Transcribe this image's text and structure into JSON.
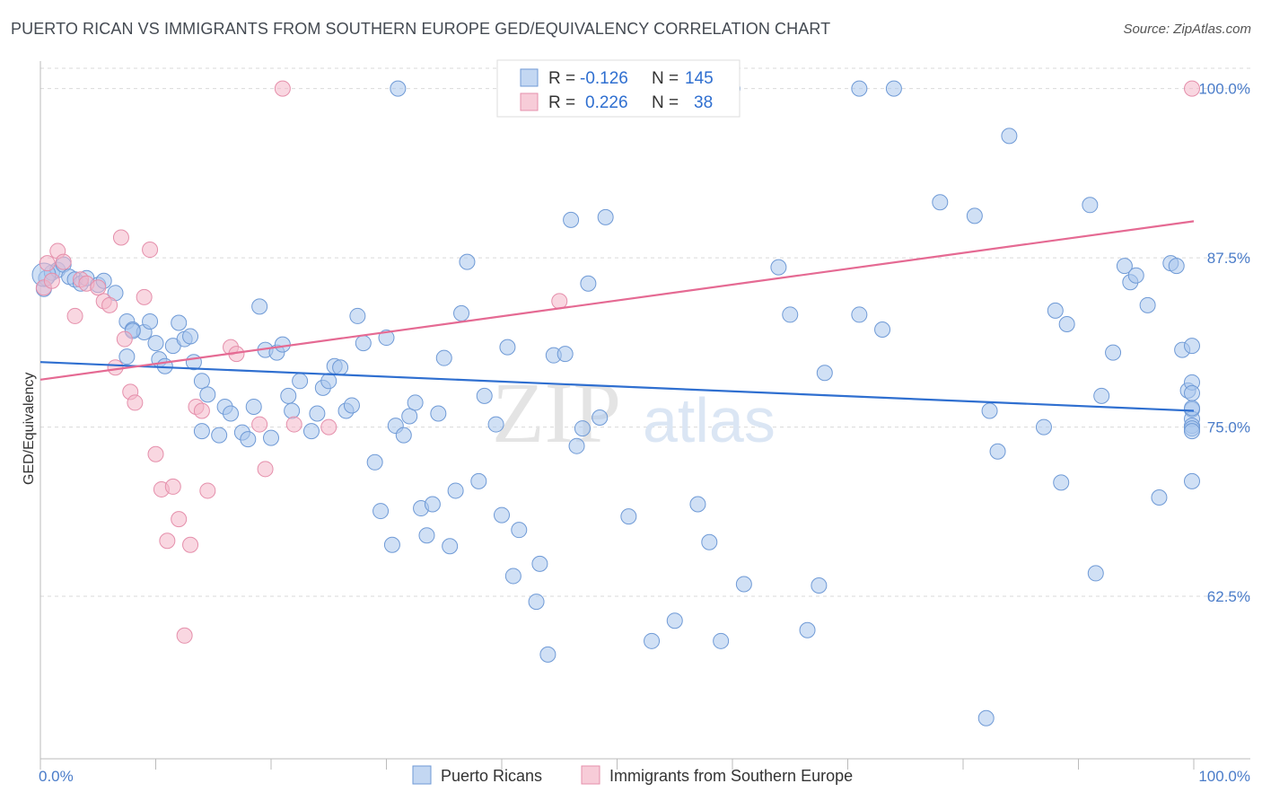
{
  "title": "PUERTO RICAN VS IMMIGRANTS FROM SOUTHERN EUROPE GED/EQUIVALENCY CORRELATION CHART",
  "source": "Source: ZipAtlas.com",
  "watermark": {
    "zip": "ZIP",
    "atlas": "atlas"
  },
  "colors": {
    "blue": "#a9c6ec",
    "blue_line": "#2f6fd0",
    "pink": "#f4b6c8",
    "pink_line": "#e56a93",
    "axis_text": "#4a7cc9"
  },
  "legend": {
    "r_label": "R =",
    "n_label": "N =",
    "rows": [
      {
        "r": "-0.126",
        "n": "145"
      },
      {
        "r": "0.226",
        "n": "38"
      }
    ]
  },
  "bottom_legend": [
    "Puerto Ricans",
    "Immigrants from Southern Europe"
  ],
  "chart_data": {
    "type": "scatter",
    "title": "PUERTO RICAN VS IMMIGRANTS FROM SOUTHERN EUROPE GED/EQUIVALENCY CORRELATION CHART",
    "xlabel": "",
    "ylabel": "GED/Equivalency",
    "xlim": [
      0,
      100
    ],
    "ylim": [
      50.5,
      101.5
    ],
    "x_tick_labels": [
      "0.0%",
      "100.0%"
    ],
    "y_ticks": [
      62.5,
      75.0,
      87.5,
      100.0
    ],
    "y_tick_labels": [
      "62.5%",
      "75.0%",
      "87.5%",
      "100.0%"
    ],
    "grid": true,
    "series": [
      {
        "name": "Puerto Ricans",
        "trend": [
          [
            0,
            79.8
          ],
          [
            100,
            76.2
          ]
        ],
        "points": [
          [
            0.3,
            85.2
          ],
          [
            0.5,
            86
          ],
          [
            1,
            86.4
          ],
          [
            1.5,
            86.6
          ],
          [
            2,
            87
          ],
          [
            2.5,
            86.1
          ],
          [
            3,
            85.9
          ],
          [
            3.5,
            85.6
          ],
          [
            4,
            86
          ],
          [
            5,
            85.5
          ],
          [
            5.5,
            85.8
          ],
          [
            6.5,
            84.9
          ],
          [
            7.5,
            82.8
          ],
          [
            8,
            82.2
          ],
          [
            9,
            82
          ],
          [
            9.5,
            82.8
          ],
          [
            7.5,
            80.2
          ],
          [
            10,
            81.2
          ],
          [
            10.3,
            80
          ],
          [
            10.8,
            79.5
          ],
          [
            11.5,
            81
          ],
          [
            12,
            82.7
          ],
          [
            12.5,
            81.5
          ],
          [
            13,
            81.7
          ],
          [
            13.3,
            79.8
          ],
          [
            14,
            78.4
          ],
          [
            14.5,
            77.4
          ],
          [
            14,
            74.7
          ],
          [
            15.5,
            74.4
          ],
          [
            16,
            76.5
          ],
          [
            16.5,
            76
          ],
          [
            17.5,
            74.6
          ],
          [
            18,
            74.1
          ],
          [
            18.5,
            76.5
          ],
          [
            19,
            83.9
          ],
          [
            19.5,
            80.7
          ],
          [
            20,
            74.2
          ],
          [
            20.5,
            80.5
          ],
          [
            21,
            81.1
          ],
          [
            21.5,
            77.3
          ],
          [
            21.8,
            76.2
          ],
          [
            22.5,
            78.4
          ],
          [
            23.5,
            74.7
          ],
          [
            24,
            76
          ],
          [
            24.5,
            77.9
          ],
          [
            25,
            78.4
          ],
          [
            25.5,
            79.5
          ],
          [
            26,
            79.4
          ],
          [
            26.5,
            76.2
          ],
          [
            27,
            76.6
          ],
          [
            27.5,
            83.2
          ],
          [
            28,
            81.2
          ],
          [
            29,
            72.4
          ],
          [
            29.5,
            68.8
          ],
          [
            30,
            81.6
          ],
          [
            30.5,
            66.3
          ],
          [
            30.8,
            75.1
          ],
          [
            31.5,
            74.4
          ],
          [
            32,
            75.8
          ],
          [
            32.5,
            76.8
          ],
          [
            33,
            69
          ],
          [
            33.5,
            67
          ],
          [
            34,
            69.3
          ],
          [
            34.5,
            76
          ],
          [
            35,
            80.1
          ],
          [
            35.5,
            66.2
          ],
          [
            36,
            70.3
          ],
          [
            36.5,
            83.4
          ],
          [
            37,
            87.2
          ],
          [
            38,
            71
          ],
          [
            38.5,
            77.3
          ],
          [
            39.5,
            75.2
          ],
          [
            40,
            68.5
          ],
          [
            40.5,
            80.9
          ],
          [
            41,
            64
          ],
          [
            41.5,
            67.4
          ],
          [
            43,
            62.1
          ],
          [
            43.3,
            64.9
          ],
          [
            44,
            58.2
          ],
          [
            44.5,
            80.3
          ],
          [
            45.5,
            80.4
          ],
          [
            46,
            90.3
          ],
          [
            46.5,
            73.6
          ],
          [
            47,
            74.9
          ],
          [
            47.5,
            85.6
          ],
          [
            48.5,
            75.7
          ],
          [
            49,
            90.5
          ],
          [
            51,
            68.4
          ],
          [
            53,
            59.2
          ],
          [
            55,
            60.7
          ],
          [
            57,
            69.3
          ],
          [
            58,
            66.5
          ],
          [
            59,
            59.2
          ],
          [
            61,
            63.4
          ],
          [
            64,
            86.8
          ],
          [
            65,
            83.3
          ],
          [
            66.5,
            60
          ],
          [
            67.5,
            63.3
          ],
          [
            68,
            79
          ],
          [
            71,
            83.3
          ],
          [
            73,
            82.2
          ],
          [
            78,
            91.6
          ],
          [
            81,
            90.6
          ],
          [
            82,
            53.5
          ],
          [
            82.3,
            76.2
          ],
          [
            83,
            73.2
          ],
          [
            84,
            96.5
          ],
          [
            87,
            75
          ],
          [
            88,
            83.6
          ],
          [
            88.5,
            70.9
          ],
          [
            89,
            82.6
          ],
          [
            91,
            91.4
          ],
          [
            91.5,
            64.2
          ],
          [
            92,
            77.3
          ],
          [
            93,
            80.5
          ],
          [
            94,
            86.9
          ],
          [
            94.5,
            85.7
          ],
          [
            95,
            86.2
          ],
          [
            96,
            84
          ],
          [
            97,
            69.8
          ],
          [
            98,
            87.1
          ],
          [
            98.5,
            86.9
          ],
          [
            99,
            80.7
          ],
          [
            99.5,
            77.7
          ],
          [
            100,
            81
          ],
          [
            100.5,
            78.3
          ],
          [
            101,
            77.5
          ],
          [
            101.5,
            76.3
          ],
          [
            102,
            75.6
          ],
          [
            102.5,
            75.1
          ],
          [
            103,
            76.4
          ],
          [
            104,
            74.9
          ],
          [
            104.5,
            74.7
          ],
          [
            105,
            71
          ],
          [
            8,
            82.1
          ],
          [
            31,
            100
          ],
          [
            46,
            100
          ],
          [
            58,
            100
          ],
          [
            60,
            100
          ],
          [
            71,
            100
          ],
          [
            74,
            100
          ]
        ]
      },
      {
        "name": "Immigrants from Southern Europe",
        "trend": [
          [
            0,
            78.5
          ],
          [
            100,
            90.2
          ]
        ],
        "points": [
          [
            0.3,
            85.3
          ],
          [
            0.6,
            87.1
          ],
          [
            1,
            85.8
          ],
          [
            1.5,
            88
          ],
          [
            2,
            87.2
          ],
          [
            3,
            83.2
          ],
          [
            3.5,
            85.9
          ],
          [
            4,
            85.6
          ],
          [
            5,
            85.3
          ],
          [
            5.5,
            84.3
          ],
          [
            6,
            84
          ],
          [
            6.5,
            79.4
          ],
          [
            7,
            89
          ],
          [
            7.3,
            81.5
          ],
          [
            7.8,
            77.6
          ],
          [
            8.2,
            76.8
          ],
          [
            9,
            84.6
          ],
          [
            9.5,
            88.1
          ],
          [
            10,
            73
          ],
          [
            10.5,
            70.4
          ],
          [
            11,
            66.6
          ],
          [
            11.5,
            70.6
          ],
          [
            12,
            68.2
          ],
          [
            12.5,
            59.6
          ],
          [
            13,
            66.3
          ],
          [
            13.5,
            76.5
          ],
          [
            14,
            76.2
          ],
          [
            14.5,
            70.3
          ],
          [
            16.5,
            80.9
          ],
          [
            17,
            80.4
          ],
          [
            19,
            75.2
          ],
          [
            19.5,
            71.9
          ],
          [
            21,
            100
          ],
          [
            22,
            75.2
          ],
          [
            25,
            75
          ],
          [
            45,
            84.3
          ],
          [
            100,
            100
          ]
        ]
      }
    ]
  }
}
